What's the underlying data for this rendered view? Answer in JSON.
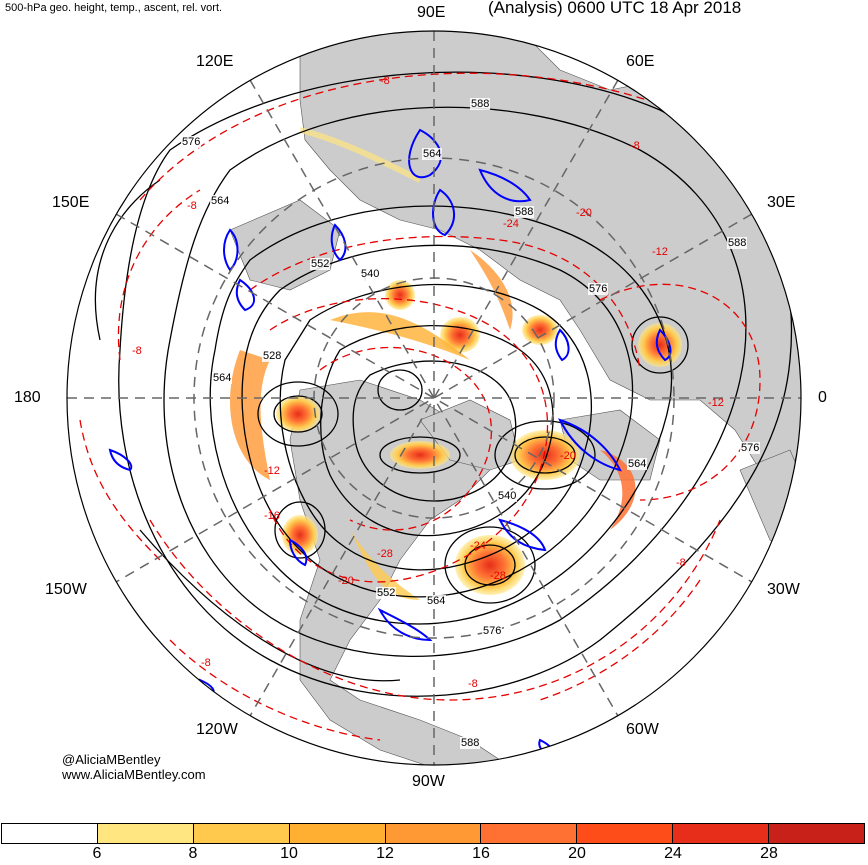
{
  "header": {
    "subtitle": "500-hPa geo. height, temp., ascent, rel. vort.",
    "title": "(Analysis) 0600 UTC 18 Apr 2018"
  },
  "longitude_labels": {
    "lon_90e": "90E",
    "lon_60e": "60E",
    "lon_30e": "30E",
    "lon_0": "0",
    "lon_30w": "30W",
    "lon_60w": "60W",
    "lon_90w": "90W",
    "lon_120w": "120W",
    "lon_150w": "150W",
    "lon_180": "180",
    "lon_150e": "150E",
    "lon_120e": "120E"
  },
  "height_contour_labels": [
    "588",
    "576",
    "564",
    "552",
    "540",
    "528",
    "564",
    "576",
    "540",
    "564",
    "552",
    "564",
    "576",
    "588",
    "588",
    "576",
    "564",
    "588"
  ],
  "temperature_labels": [
    "-8",
    "-8",
    "-12",
    "-20",
    "-24",
    "-8",
    "-8",
    "-12",
    "-28",
    "-20",
    "-8",
    "-8",
    "-16",
    "-12",
    "-20",
    "-24",
    "-28",
    "-8"
  ],
  "credit": {
    "handle": "@AliciaMBentley",
    "website": "www.AliciaMBentley.com"
  },
  "colorbar": {
    "ticks": [
      "6",
      "8",
      "10",
      "12",
      "16",
      "20",
      "24",
      "28"
    ],
    "colors": [
      "#ffffff",
      "#ffe680",
      "#ffc94d",
      "#ffb033",
      "#ff9933",
      "#ff7033",
      "#ff4d1a",
      "#e62e1a",
      "#c8211a"
    ]
  },
  "colors": {
    "land": "#cccccc",
    "ocean": "#ffffff",
    "height_contour": "#000000",
    "temperature_contour": "#e60000",
    "vorticity": "#0000ff",
    "grid": "#666666"
  }
}
